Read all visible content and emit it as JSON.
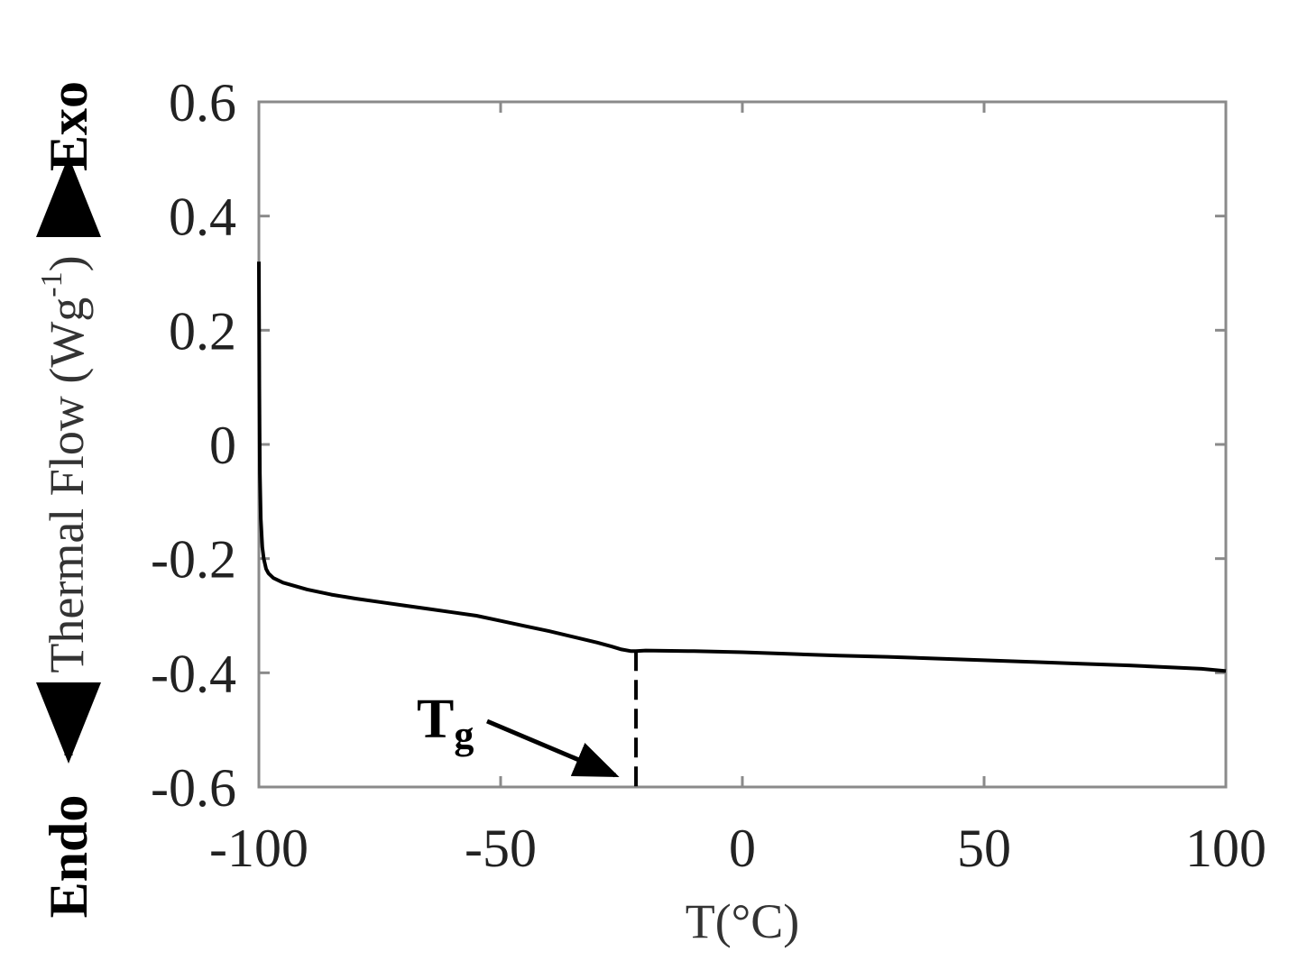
{
  "chart_data": {
    "type": "line",
    "xlabel": "T(°C)",
    "ylabel": "Thermal Flow (Wg",
    "ylabel_sup": "-1",
    "ylabel_close": ")",
    "exo_label": "Exo",
    "endo_label": "Endo",
    "xlim": [
      -100,
      100
    ],
    "ylim": [
      -0.6,
      0.6
    ],
    "x_ticks": [
      -100,
      -50,
      0,
      50,
      100
    ],
    "x_tick_labels": [
      "-100",
      "-50",
      "0",
      "50",
      "100"
    ],
    "y_ticks": [
      0.6,
      0.4,
      0.2,
      0,
      -0.2,
      -0.4,
      -0.6
    ],
    "y_tick_labels": [
      "0.6",
      "0.4",
      "0.2",
      "0",
      "-0.2",
      "-0.4",
      "-0.6"
    ],
    "grid": false,
    "series": [
      {
        "x": [
          -100,
          -99.9,
          -99.8,
          -99.6,
          -99.3,
          -99.0,
          -98.5,
          -98.0,
          -97.0,
          -95,
          -90,
          -85,
          -80,
          -75,
          -70,
          -65,
          -60,
          -55,
          -50,
          -45,
          -40,
          -35,
          -30,
          -27,
          -25,
          -23,
          -22,
          -20,
          -10,
          0,
          10,
          20,
          30,
          40,
          50,
          60,
          70,
          80,
          90,
          95,
          100
        ],
        "y": [
          0.32,
          0.1,
          -0.05,
          -0.13,
          -0.18,
          -0.2,
          -0.218,
          -0.226,
          -0.234,
          -0.242,
          -0.254,
          -0.263,
          -0.27,
          -0.276,
          -0.282,
          -0.288,
          -0.294,
          -0.3,
          -0.309,
          -0.318,
          -0.327,
          -0.337,
          -0.347,
          -0.354,
          -0.359,
          -0.362,
          -0.362,
          -0.361,
          -0.362,
          -0.364,
          -0.367,
          -0.37,
          -0.372,
          -0.375,
          -0.378,
          -0.381,
          -0.384,
          -0.387,
          -0.391,
          -0.393,
          -0.397
        ]
      }
    ],
    "annotations": [
      {
        "text": "T",
        "subscript": "g",
        "x": -22,
        "y": -0.6
      }
    ],
    "tg_marker_x": -22
  }
}
